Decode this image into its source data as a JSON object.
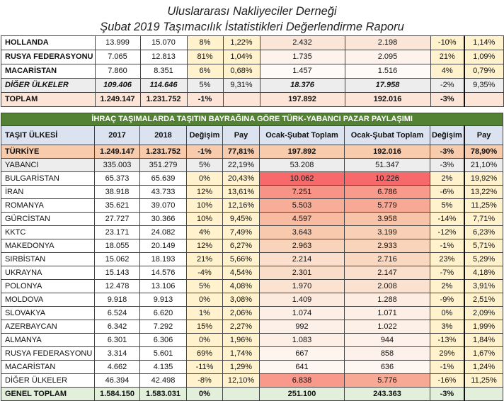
{
  "header": {
    "line1": "Uluslararası Nakliyeciler Derneği",
    "line2": "Şubat 2019 Taşımacılık İstatistikleri Değerlendirme Raporu"
  },
  "top_table": {
    "rows": [
      {
        "name": "HOLLANDA",
        "v2017": "13.999",
        "v2018": "15.070",
        "chg": "8%",
        "pay": "1,22%",
        "os1": "2.432",
        "os2": "2.198",
        "chg2": "-10%",
        "pay2": "1,14%"
      },
      {
        "name": "RUSYA FEDERASYONU",
        "v2017": "7.065",
        "v2018": "12.813",
        "chg": "81%",
        "pay": "1,04%",
        "os1": "1.735",
        "os2": "2.095",
        "chg2": "21%",
        "pay2": "1,09%"
      },
      {
        "name": "MACARİSTAN",
        "v2017": "7.860",
        "v2018": "8.351",
        "chg": "6%",
        "pay": "0,68%",
        "os1": "1.457",
        "os2": "1.516",
        "chg2": "4%",
        "pay2": "0,79%"
      },
      {
        "name": "DİĞER ÜLKELER",
        "v2017": "109.406",
        "v2018": "114.646",
        "chg": "5%",
        "pay": "9,31%",
        "os1": "18.376",
        "os2": "17.958",
        "chg2": "-2%",
        "pay2": "9,35%"
      },
      {
        "name": "TOPLAM",
        "v2017": "1.249.147",
        "v2018": "1.231.752",
        "chg": "-1%",
        "pay": "",
        "os1": "197.892",
        "os2": "192.016",
        "chg2": "-3%",
        "pay2": ""
      }
    ]
  },
  "main_table": {
    "title": "İHRAÇ TAŞIMALARDA TAŞITIN BAYRAĞINA GÖRE TÜRK-YABANCI PAZAR PAYLAŞIMI",
    "headers": [
      "TAŞIT ÜLKESİ",
      "2017",
      "2018",
      "Değişim",
      "Pay",
      "Ocak-Şubat Toplam",
      "Ocak-Şubat Toplam",
      "Değişim",
      "Pay"
    ],
    "rows": [
      {
        "name": "TÜRKİYE",
        "v2017": "1.249.147",
        "v2018": "1.231.752",
        "chg": "-1%",
        "pay": "77,81%",
        "os1": "197.892",
        "os2": "192.016",
        "chg2": "-3%",
        "pay2": "78,90%"
      },
      {
        "name": "YABANCI",
        "v2017": "335.003",
        "v2018": "351.279",
        "chg": "5%",
        "pay": "22,19%",
        "os1": "53.208",
        "os2": "51.347",
        "chg2": "-3%",
        "pay2": "21,10%"
      },
      {
        "name": "BULGARİSTAN",
        "v2017": "65.373",
        "v2018": "65.639",
        "chg": "0%",
        "pay": "20,43%",
        "os1": "10.062",
        "os2": "10.226",
        "chg2": "2%",
        "pay2": "19,92%"
      },
      {
        "name": "İRAN",
        "v2017": "38.918",
        "v2018": "43.733",
        "chg": "12%",
        "pay": "13,61%",
        "os1": "7.251",
        "os2": "6.786",
        "chg2": "-6%",
        "pay2": "13,22%"
      },
      {
        "name": "ROMANYA",
        "v2017": "35.621",
        "v2018": "39.070",
        "chg": "10%",
        "pay": "12,16%",
        "os1": "5.503",
        "os2": "5.779",
        "chg2": "5%",
        "pay2": "11,25%"
      },
      {
        "name": "GÜRCİSTAN",
        "v2017": "27.727",
        "v2018": "30.366",
        "chg": "10%",
        "pay": "9,45%",
        "os1": "4.597",
        "os2": "3.958",
        "chg2": "-14%",
        "pay2": "7,71%"
      },
      {
        "name": "KKTC",
        "v2017": "23.171",
        "v2018": "24.082",
        "chg": "4%",
        "pay": "7,49%",
        "os1": "3.643",
        "os2": "3.199",
        "chg2": "-12%",
        "pay2": "6,23%"
      },
      {
        "name": "MAKEDONYA",
        "v2017": "18.055",
        "v2018": "20.149",
        "chg": "12%",
        "pay": "6,27%",
        "os1": "2.963",
        "os2": "2.933",
        "chg2": "-1%",
        "pay2": "5,71%"
      },
      {
        "name": "SIRBİSTAN",
        "v2017": "15.062",
        "v2018": "18.193",
        "chg": "21%",
        "pay": "5,66%",
        "os1": "2.214",
        "os2": "2.716",
        "chg2": "23%",
        "pay2": "5,29%"
      },
      {
        "name": "UKRAYNA",
        "v2017": "15.143",
        "v2018": "14.576",
        "chg": "-4%",
        "pay": "4,54%",
        "os1": "2.301",
        "os2": "2.147",
        "chg2": "-7%",
        "pay2": "4,18%"
      },
      {
        "name": "POLONYA",
        "v2017": "12.478",
        "v2018": "13.106",
        "chg": "5%",
        "pay": "4,08%",
        "os1": "1.970",
        "os2": "2.008",
        "chg2": "2%",
        "pay2": "3,91%"
      },
      {
        "name": "MOLDOVA",
        "v2017": "9.918",
        "v2018": "9.913",
        "chg": "0%",
        "pay": "3,08%",
        "os1": "1.409",
        "os2": "1.288",
        "chg2": "-9%",
        "pay2": "2,51%"
      },
      {
        "name": "SLOVAKYA",
        "v2017": "6.524",
        "v2018": "6.620",
        "chg": "1%",
        "pay": "2,06%",
        "os1": "1.074",
        "os2": "1.071",
        "chg2": "0%",
        "pay2": "2,09%"
      },
      {
        "name": "AZERBAYCAN",
        "v2017": "6.342",
        "v2018": "7.292",
        "chg": "15%",
        "pay": "2,27%",
        "os1": "992",
        "os2": "1.022",
        "chg2": "3%",
        "pay2": "1,99%"
      },
      {
        "name": "ALMANYA",
        "v2017": "6.301",
        "v2018": "6.306",
        "chg": "0%",
        "pay": "1,96%",
        "os1": "1.083",
        "os2": "944",
        "chg2": "-13%",
        "pay2": "1,84%"
      },
      {
        "name": "RUSYA FEDERASYONU",
        "v2017": "3.314",
        "v2018": "5.601",
        "chg": "69%",
        "pay": "1,74%",
        "os1": "667",
        "os2": "858",
        "chg2": "29%",
        "pay2": "1,67%"
      },
      {
        "name": "MACARİSTAN",
        "v2017": "4.662",
        "v2018": "4.135",
        "chg": "-11%",
        "pay": "1,29%",
        "os1": "641",
        "os2": "636",
        "chg2": "-1%",
        "pay2": "1,24%"
      },
      {
        "name": "DİĞER ÜLKELER",
        "v2017": "46.394",
        "v2018": "42.498",
        "chg": "-8%",
        "pay": "12,10%",
        "os1": "6.838",
        "os2": "5.776",
        "chg2": "-16%",
        "pay2": "11,25%"
      },
      {
        "name": "GENEL TOPLAM",
        "v2017": "1.584.150",
        "v2018": "1.583.031",
        "chg": "0%",
        "pay": "",
        "os1": "251.100",
        "os2": "243.363",
        "chg2": "-3%",
        "pay2": ""
      }
    ]
  },
  "colors": {
    "title_green": "#548235",
    "header_blue": "#dbe3f0",
    "turkiye_peach": "#f8cbad",
    "total_green": "#e2efda",
    "pct_yellow": "#fff2cc",
    "heat_max": "#f8696b"
  }
}
